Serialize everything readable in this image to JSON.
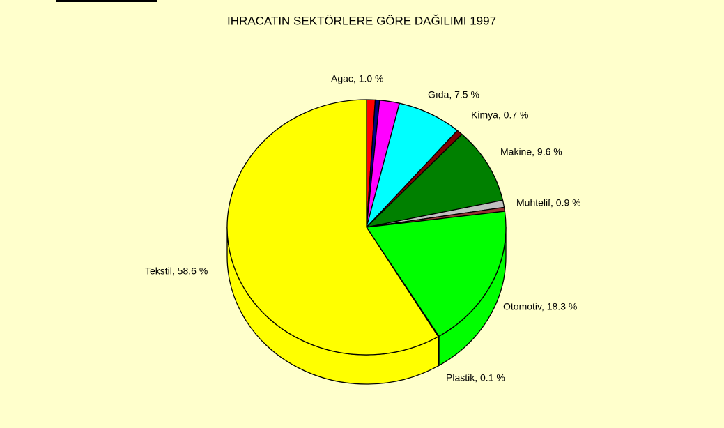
{
  "chart_data": {
    "type": "pie3d",
    "title": "IHRACATIN SEKTÖRLERE GÖRE DAĞILIMI 1997",
    "categories": [
      "Agac, 1.0 %",
      null,
      null,
      "Gıda, 7.5 %",
      "Kimya, 0.7 %",
      "Makine, 9.6 %",
      "Muhtelif, 0.9 %",
      null,
      "Otomotiv, 18.3 %",
      "Plastik, 0.1 %",
      "Tekstil, 58.6 %"
    ],
    "values": [
      1.0,
      0.5,
      2.3,
      7.5,
      0.7,
      9.6,
      0.9,
      0.5,
      18.3,
      0.1,
      58.6
    ],
    "colors": [
      "#ff0000",
      "#000080",
      "#ff00ff",
      "#00ffff",
      "#800000",
      "#008000",
      "#c0c0c0",
      "#993333",
      "#00ff00",
      "#000080",
      "#ffff00"
    ]
  }
}
